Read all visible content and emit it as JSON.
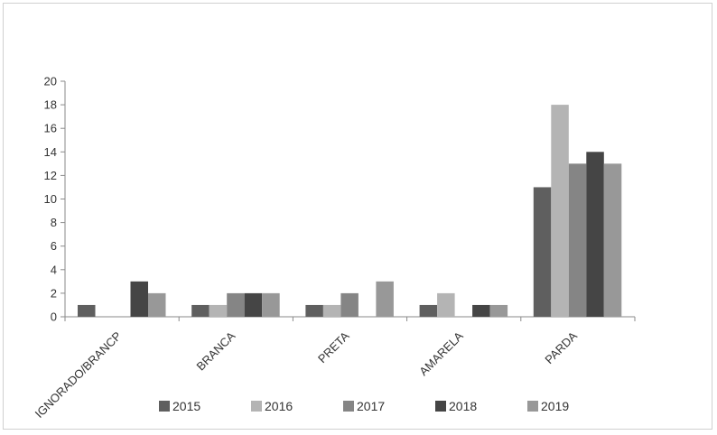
{
  "chart_data": {
    "type": "bar",
    "title": "",
    "xlabel": "",
    "ylabel": "",
    "categories": [
      "IGNORADO/BRANCP",
      "BRANCA",
      "PRETA",
      "AMARELA",
      "PARDA"
    ],
    "ylim": [
      0,
      20
    ],
    "yticks": [
      0,
      2,
      4,
      6,
      8,
      10,
      12,
      14,
      16,
      18,
      20
    ],
    "grid": false,
    "legend_position": "bottom",
    "series": [
      {
        "name": "2015",
        "color": "#5f5f5f",
        "values": [
          1,
          1,
          1,
          1,
          11
        ]
      },
      {
        "name": "2016",
        "color": "#b4b4b4",
        "values": [
          0,
          1,
          1,
          2,
          18
        ]
      },
      {
        "name": "2017",
        "color": "#858585",
        "values": [
          0,
          2,
          2,
          0,
          13
        ]
      },
      {
        "name": "2018",
        "color": "#454545",
        "values": [
          3,
          2,
          0,
          1,
          14
        ]
      },
      {
        "name": "2019",
        "color": "#989898",
        "values": [
          2,
          2,
          3,
          1,
          13
        ]
      }
    ]
  }
}
